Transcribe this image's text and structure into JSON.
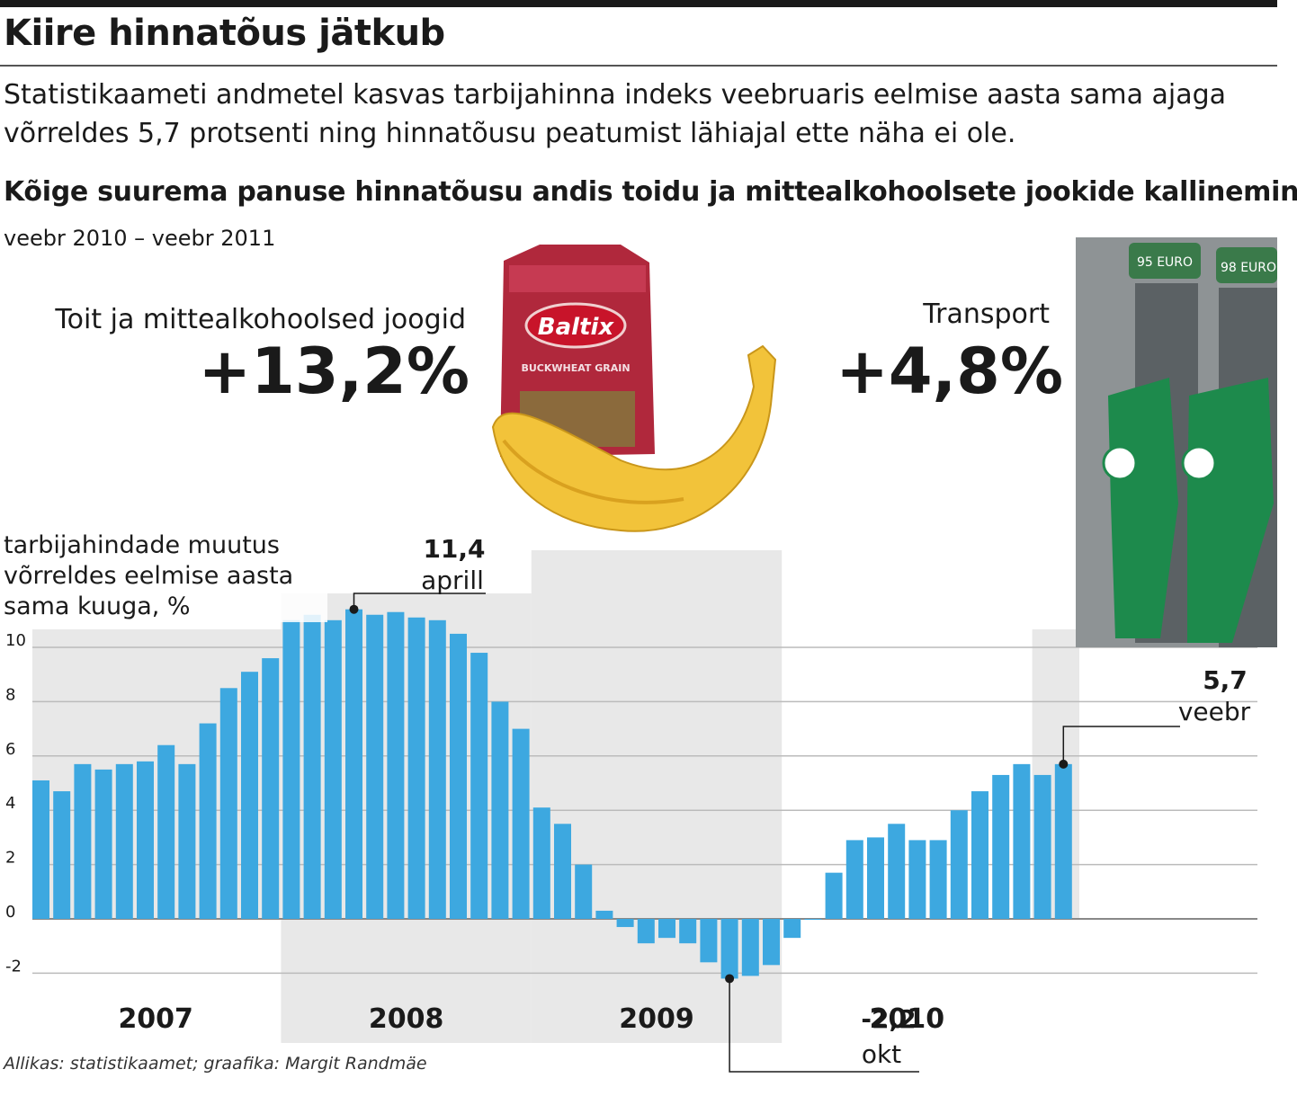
{
  "header": {
    "title": "Kiire hinnatõus jätkub",
    "intro": "Statistikaameti andmetel kasvas tarbijahinna indeks veebruaris eelmise aasta sama ajaga võrreldes 5,7 protsenti ning hinnatõusu peatumist lähiajal ette näha ei ole.",
    "subtitle": "Kõige suurema panuse hinnatõusu andis toidu ja mittealkohoolsete jookide kallinemine",
    "period": "veebr 2010 – veebr 2011"
  },
  "highlights": {
    "food": {
      "label": "Toit ja mittealkohoolsed joogid",
      "value": "+13,2%"
    },
    "transport": {
      "label": "Transport",
      "value": "+4,8%"
    },
    "product_brand": "Baltix",
    "product_text": "BUCKWHEAT GRAIN",
    "pump_labels": [
      "95 EURO",
      "98 EURO"
    ]
  },
  "colors": {
    "bar": "#3da8e0",
    "shade": "#e8e8e8",
    "grid": "#bbbbbb",
    "text": "#1a1a1a"
  },
  "chart_data": {
    "type": "bar",
    "ylabel": "tarbijahindade muutus võrreldes eelmise aasta sama kuuga, %",
    "ylim": [
      -2.5,
      11.5
    ],
    "yticks": [
      -2,
      0,
      2,
      4,
      6,
      8,
      10
    ],
    "ytick_labels": [
      "-2",
      "0",
      "2",
      "4",
      "6",
      "8",
      "10"
    ],
    "years": [
      "2007",
      "2008",
      "2009",
      "2010"
    ],
    "values": [
      5.1,
      4.7,
      5.7,
      5.5,
      5.7,
      5.8,
      6.4,
      5.7,
      7.2,
      8.5,
      9.1,
      9.6,
      11.0,
      11.2,
      11.0,
      11.4,
      11.2,
      11.3,
      11.1,
      11.0,
      10.5,
      9.8,
      8.0,
      7.0,
      4.1,
      3.5,
      2.0,
      0.3,
      -0.3,
      -0.9,
      -0.7,
      -0.9,
      -1.6,
      -2.2,
      -2.1,
      -1.7,
      -0.7,
      0.0,
      1.7,
      2.9,
      3.0,
      3.5,
      2.9,
      2.9,
      4.0,
      4.7,
      5.3,
      5.7,
      5.3,
      5.7
    ],
    "annotations": [
      {
        "value": "11,4",
        "label": "aprill",
        "index": 15
      },
      {
        "value": "-2,2",
        "label": "okt",
        "index": 33
      },
      {
        "value": "5,7",
        "label": "veebr",
        "index": 49
      }
    ]
  },
  "footer": {
    "source": "Allikas: statistikaamet; graafika: Margit Randmäe"
  }
}
